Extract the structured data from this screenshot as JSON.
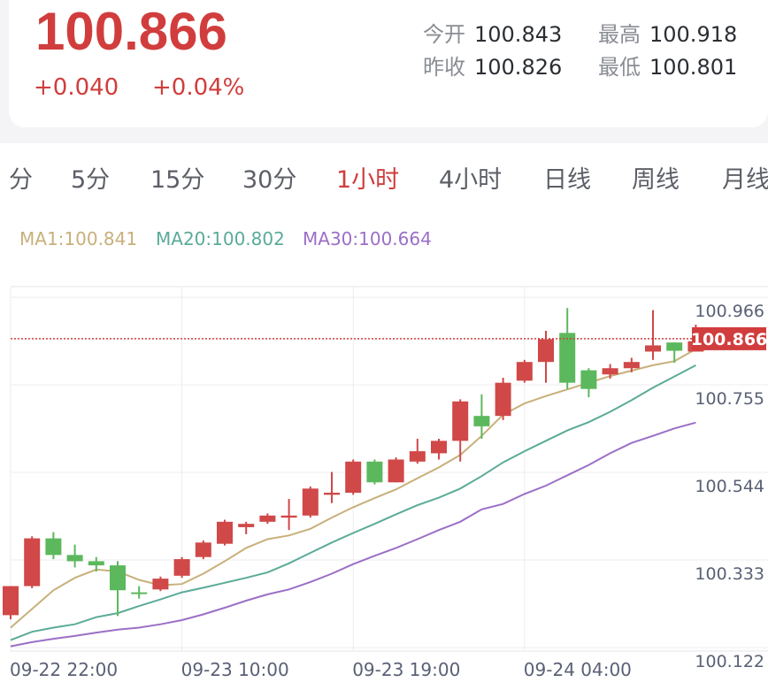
{
  "quote": {
    "last": "100.866",
    "change": "+0.040",
    "change_pct": "+0.04%",
    "open_label": "今开",
    "open": "100.843",
    "high_label": "最高",
    "high": "100.918",
    "prev_close_label": "昨收",
    "prev_close": "100.826",
    "low_label": "最低",
    "low": "100.801"
  },
  "tabs": [
    {
      "label": "分"
    },
    {
      "label": "5分"
    },
    {
      "label": "15分"
    },
    {
      "label": "30分"
    },
    {
      "label": "1小时",
      "active": true
    },
    {
      "label": "4小时"
    },
    {
      "label": "日线"
    },
    {
      "label": "周线"
    },
    {
      "label": "月线"
    }
  ],
  "ma_legend": {
    "ma1": "MA1:100.841",
    "ma20": "MA20:100.802",
    "ma30": "MA30:100.664"
  },
  "colors": {
    "up": "#d04848",
    "down": "#5cb85c",
    "ma1": "#c8b07a",
    "ma20": "#5aab98",
    "ma30": "#9b6fc6",
    "accent": "#d13d3d"
  },
  "chart_data": {
    "type": "candlestick",
    "ylim": [
      100.122,
      100.966
    ],
    "y_ticks": [
      "100.966",
      "100.755",
      "100.544",
      "100.333",
      "100.122"
    ],
    "current_price": "100.866",
    "x_tick_labels": [
      "09-22 22:00",
      "09-23 10:00",
      "09-23 19:00",
      "09-24 04:00"
    ],
    "x_tick_index": [
      0,
      8,
      16,
      24
    ],
    "candles": [
      {
        "o": 100.2,
        "c": 100.27,
        "h": 100.27,
        "l": 100.19
      },
      {
        "o": 100.27,
        "c": 100.385,
        "h": 100.39,
        "l": 100.265
      },
      {
        "o": 100.385,
        "c": 100.345,
        "h": 100.4,
        "l": 100.335
      },
      {
        "o": 100.345,
        "c": 100.33,
        "h": 100.37,
        "l": 100.315
      },
      {
        "o": 100.33,
        "c": 100.32,
        "h": 100.34,
        "l": 100.305
      },
      {
        "o": 100.32,
        "c": 100.26,
        "h": 100.33,
        "l": 100.198
      },
      {
        "o": 100.255,
        "c": 100.252,
        "h": 100.27,
        "l": 100.24
      },
      {
        "o": 100.262,
        "c": 100.288,
        "h": 100.293,
        "l": 100.258
      },
      {
        "o": 100.295,
        "c": 100.335,
        "h": 100.34,
        "l": 100.29
      },
      {
        "o": 100.34,
        "c": 100.375,
        "h": 100.38,
        "l": 100.335
      },
      {
        "o": 100.372,
        "c": 100.425,
        "h": 100.43,
        "l": 100.368
      },
      {
        "o": 100.412,
        "c": 100.42,
        "h": 100.425,
        "l": 100.395
      },
      {
        "o": 100.425,
        "c": 100.44,
        "h": 100.445,
        "l": 100.42
      },
      {
        "o": 100.435,
        "c": 100.44,
        "h": 100.48,
        "l": 100.405
      },
      {
        "o": 100.44,
        "c": 100.505,
        "h": 100.51,
        "l": 100.435
      },
      {
        "o": 100.49,
        "c": 100.495,
        "h": 100.545,
        "l": 100.47
      },
      {
        "o": 100.495,
        "c": 100.57,
        "h": 100.575,
        "l": 100.49
      },
      {
        "o": 100.57,
        "c": 100.52,
        "h": 100.575,
        "l": 100.515
      },
      {
        "o": 100.52,
        "c": 100.575,
        "h": 100.58,
        "l": 100.52
      },
      {
        "o": 100.57,
        "c": 100.595,
        "h": 100.625,
        "l": 100.565
      },
      {
        "o": 100.59,
        "c": 100.62,
        "h": 100.625,
        "l": 100.575
      },
      {
        "o": 100.62,
        "c": 100.715,
        "h": 100.72,
        "l": 100.57
      },
      {
        "o": 100.68,
        "c": 100.655,
        "h": 100.732,
        "l": 100.625
      },
      {
        "o": 100.68,
        "c": 100.76,
        "h": 100.772,
        "l": 100.67
      },
      {
        "o": 100.765,
        "c": 100.81,
        "h": 100.815,
        "l": 100.76
      },
      {
        "o": 100.81,
        "c": 100.865,
        "h": 100.885,
        "l": 100.76
      },
      {
        "o": 100.88,
        "c": 100.76,
        "h": 100.94,
        "l": 100.745
      },
      {
        "o": 100.79,
        "c": 100.745,
        "h": 100.795,
        "l": 100.725
      },
      {
        "o": 100.78,
        "c": 100.795,
        "h": 100.805,
        "l": 100.77
      },
      {
        "o": 100.795,
        "c": 100.81,
        "h": 100.82,
        "l": 100.785
      },
      {
        "o": 100.835,
        "c": 100.85,
        "h": 100.935,
        "l": 100.815
      },
      {
        "o": 100.857,
        "c": 100.837,
        "h": 100.857,
        "l": 100.808
      },
      {
        "o": 100.835,
        "c": 100.86,
        "h": 100.9,
        "l": 100.835
      }
    ],
    "series": [
      {
        "name": "MA1",
        "values": [
          100.17,
          100.215,
          100.26,
          100.29,
          100.31,
          100.305,
          100.285,
          100.272,
          100.275,
          100.3,
          100.33,
          100.362,
          100.383,
          100.392,
          100.408,
          100.435,
          100.46,
          100.482,
          100.503,
          100.53,
          100.556,
          100.586,
          100.632,
          100.683,
          100.71,
          100.728,
          100.744,
          100.76,
          100.776,
          100.789,
          100.802,
          100.812,
          100.841
        ]
      },
      {
        "name": "MA20",
        "values": [
          100.14,
          100.16,
          100.17,
          100.178,
          100.195,
          100.205,
          100.222,
          100.238,
          100.255,
          100.266,
          100.278,
          100.29,
          100.303,
          100.325,
          100.35,
          100.375,
          100.398,
          100.42,
          100.443,
          100.465,
          100.483,
          100.505,
          100.535,
          100.568,
          100.595,
          100.62,
          100.645,
          100.665,
          100.69,
          100.718,
          100.748,
          100.775,
          100.802
        ]
      },
      {
        "name": "MA30",
        "values": [
          100.125,
          100.135,
          100.143,
          100.15,
          100.158,
          100.165,
          100.17,
          100.178,
          100.188,
          100.202,
          100.218,
          100.235,
          100.25,
          100.262,
          100.28,
          100.3,
          100.323,
          100.343,
          100.362,
          100.383,
          100.405,
          100.425,
          100.455,
          100.468,
          100.492,
          100.512,
          100.537,
          100.562,
          100.59,
          100.615,
          100.632,
          100.65,
          100.664
        ]
      }
    ]
  }
}
